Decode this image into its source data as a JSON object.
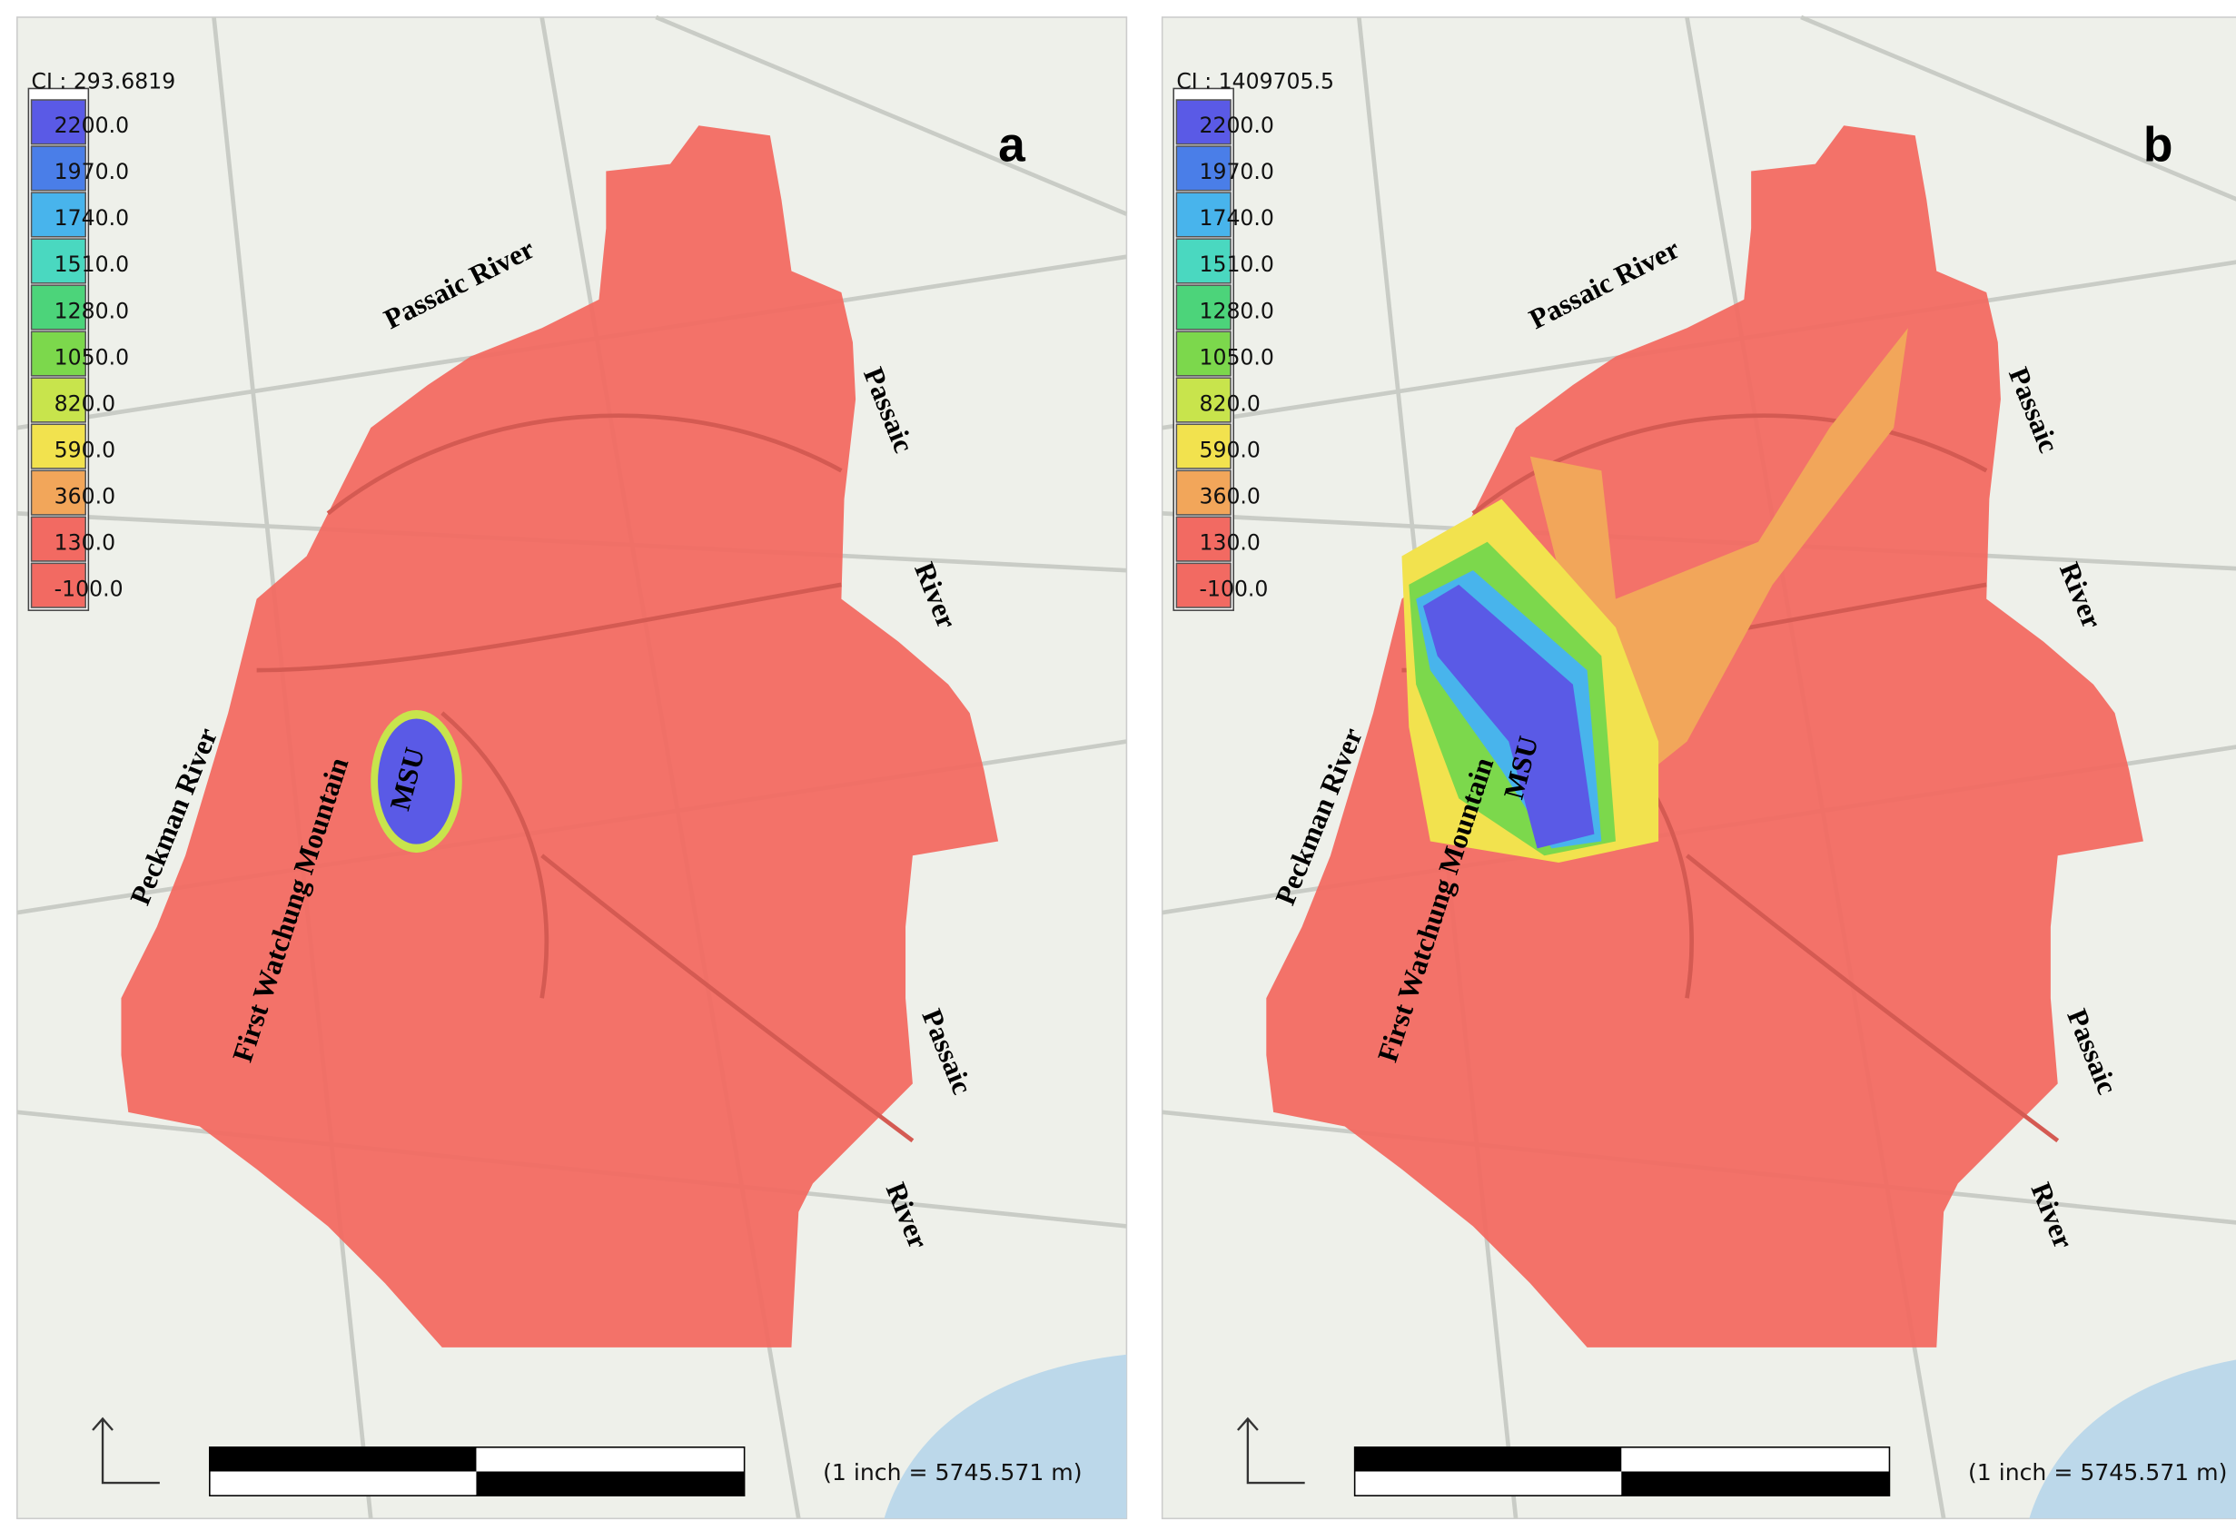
{
  "panels": [
    {
      "label": "a",
      "legend": {
        "title": "CI : 293.6819",
        "labels": [
          "2200.0",
          "1970.0",
          "1740.0",
          "1510.0",
          "1280.0",
          "1050.0",
          "820.0",
          "590.0",
          "360.0",
          "130.0",
          "-100.0"
        ]
      },
      "places": [
        "Passaic  River",
        "Passaic",
        "River",
        "Peckman  River",
        "First Watchung Mountain",
        "Passaic",
        "River"
      ],
      "source_label": "MSU",
      "scale": "(1 inch = 5745.571 m)"
    },
    {
      "label": "b",
      "legend": {
        "title": "CI : 1409705.5",
        "labels": [
          "2200.0",
          "1970.0",
          "1740.0",
          "1510.0",
          "1280.0",
          "1050.0",
          "820.0",
          "590.0",
          "360.0",
          "130.0",
          "-100.0"
        ]
      },
      "places": [
        "Passaic  River",
        "Passaic",
        "River",
        "Peckman  River",
        "First Watchung Mountain",
        "Passaic",
        "River"
      ],
      "source_label": "MSU",
      "scale": "(1 inch = 5745.571 m)"
    }
  ]
}
